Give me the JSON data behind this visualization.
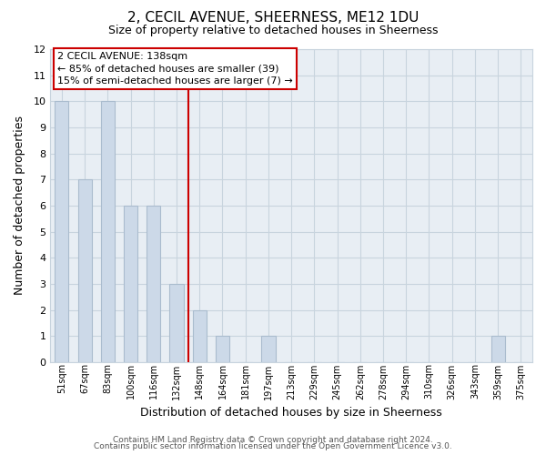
{
  "title": "2, CECIL AVENUE, SHEERNESS, ME12 1DU",
  "subtitle": "Size of property relative to detached houses in Sheerness",
  "xlabel": "Distribution of detached houses by size in Sheerness",
  "ylabel": "Number of detached properties",
  "bar_color": "#ccd9e8",
  "bar_edgecolor": "#aabcce",
  "categories": [
    "51sqm",
    "67sqm",
    "83sqm",
    "100sqm",
    "116sqm",
    "132sqm",
    "148sqm",
    "164sqm",
    "181sqm",
    "197sqm",
    "213sqm",
    "229sqm",
    "245sqm",
    "262sqm",
    "278sqm",
    "294sqm",
    "310sqm",
    "326sqm",
    "343sqm",
    "359sqm",
    "375sqm"
  ],
  "values": [
    10,
    7,
    10,
    6,
    6,
    3,
    2,
    1,
    0,
    1,
    0,
    0,
    0,
    0,
    0,
    0,
    0,
    0,
    0,
    1,
    0
  ],
  "ylim": [
    0,
    12
  ],
  "yticks": [
    0,
    1,
    2,
    3,
    4,
    5,
    6,
    7,
    8,
    9,
    10,
    11,
    12
  ],
  "property_line_x": 5.5,
  "property_line_color": "#cc0000",
  "annotation_text_line1": "2 CECIL AVENUE: 138sqm",
  "annotation_text_line2": "← 85% of detached houses are smaller (39)",
  "annotation_text_line3": "15% of semi-detached houses are larger (7) →",
  "annotation_box_color": "#ffffff",
  "annotation_box_edgecolor": "#cc0000",
  "footer_line1": "Contains HM Land Registry data © Crown copyright and database right 2024.",
  "footer_line2": "Contains public sector information licensed under the Open Government Licence v3.0.",
  "background_color": "#ffffff",
  "plot_bg_color": "#e8eef4",
  "grid_color": "#c8d4de"
}
